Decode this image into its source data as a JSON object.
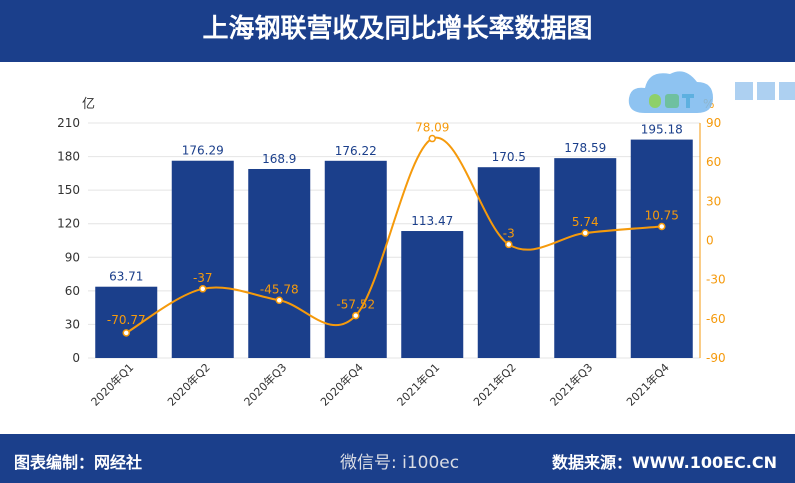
{
  "header": {
    "title": "上海钢联营收及同比增长率数据图"
  },
  "footer": {
    "credit": "图表编制：网经社",
    "source": "数据来源：WWW.100EC.CN",
    "wechat": "微信号: i100ec"
  },
  "logo": {
    "name": "电数宝",
    "subtitle": "电商大数据库",
    "mark": "eDT"
  },
  "colors": {
    "bar": "#1b3f8b",
    "line": "#f59a0c",
    "header": "#1b3f8b"
  },
  "chart_data": {
    "type": "bar+line",
    "categories": [
      "2020年Q1",
      "2020年Q2",
      "2020年Q3",
      "2020年Q4",
      "2021年Q1",
      "2021年Q2",
      "2021年Q3",
      "2021年Q4"
    ],
    "series": [
      {
        "axis": "left",
        "type": "bar",
        "values": [
          63.71,
          176.29,
          168.9,
          176.22,
          113.47,
          170.5,
          178.59,
          195.18
        ]
      },
      {
        "axis": "right",
        "type": "line",
        "values": [
          -70.77,
          -37,
          -45.78,
          -57.52,
          78.09,
          -3,
          5.74,
          10.75
        ]
      }
    ],
    "left_axis": {
      "unit": "亿",
      "range": [
        0,
        210
      ],
      "ticks": [
        0,
        30,
        60,
        90,
        120,
        150,
        180,
        210
      ]
    },
    "right_axis": {
      "unit": "%",
      "range": [
        -90,
        90
      ],
      "ticks": [
        -90,
        -60,
        -30,
        0,
        30,
        60,
        90
      ]
    },
    "grid": true
  }
}
